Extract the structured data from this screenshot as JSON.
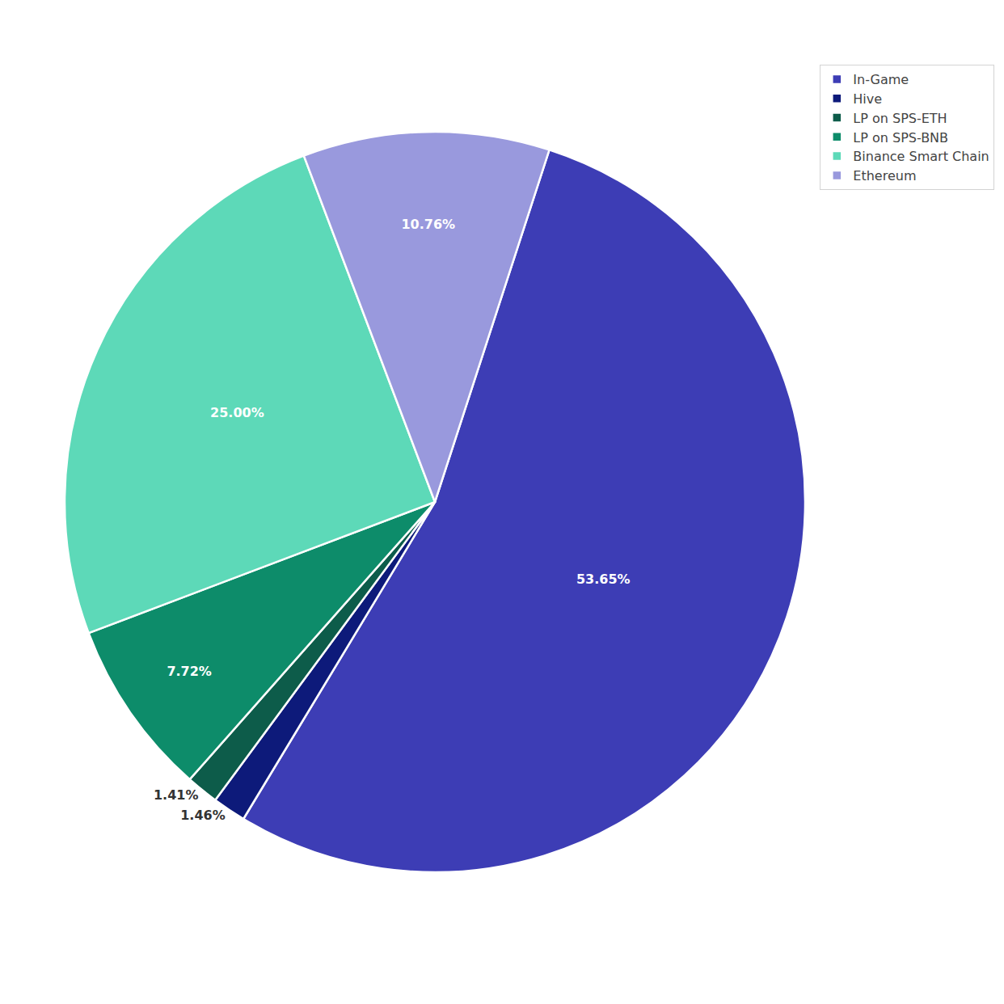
{
  "chart_data": {
    "type": "pie",
    "categories": [
      "In-Game",
      "Hive",
      "LP on SPS-ETH",
      "LP on SPS-BNB",
      "Binance Smart Chain",
      "Ethereum"
    ],
    "values": [
      53.65,
      1.46,
      1.41,
      7.72,
      25.0,
      10.76
    ],
    "value_labels": [
      "53.65%",
      "1.46%",
      "1.41%",
      "7.72%",
      "25.00%",
      "10.76%"
    ],
    "colors": [
      "#3d3db5",
      "#0d1a7a",
      "#0d5c4a",
      "#0d8c6a",
      "#5dd9b8",
      "#9999dd"
    ],
    "data_labels": true,
    "legend": "upper right"
  }
}
